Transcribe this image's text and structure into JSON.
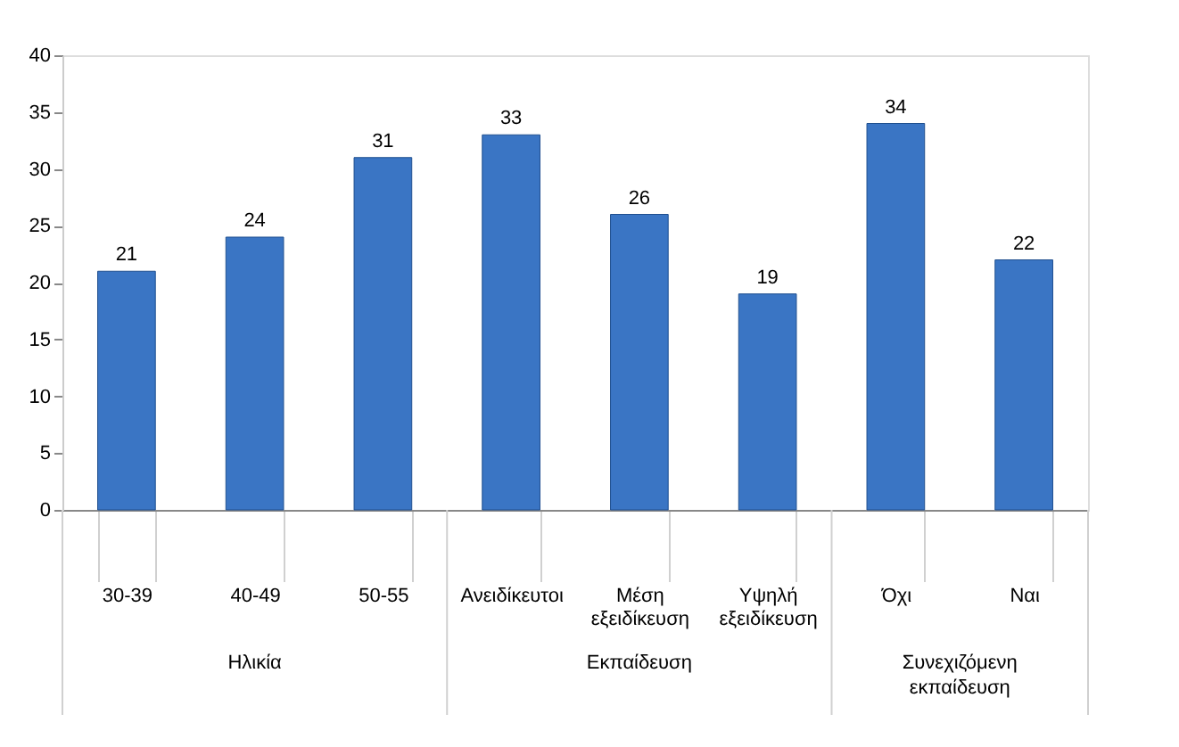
{
  "chart_data": {
    "type": "bar",
    "categories": [
      "30-39",
      "40-49",
      "50-55",
      "Ανειδίκευτοι",
      "Μέση εξειδίκευση",
      "Υψηλή εξειδίκευση",
      "Όχι",
      "Ναι"
    ],
    "values": [
      21,
      24,
      31,
      33,
      26,
      19,
      34,
      22
    ],
    "color": "#3a75c4",
    "ylim": [
      0,
      40
    ],
    "yticks": [
      0,
      5,
      10,
      15,
      20,
      25,
      30,
      35,
      40
    ],
    "grid": false,
    "data_labels": true,
    "annotations": [
      "Ηλικία",
      "Εκπαίδευση",
      "Συνεχιζόμενη εκπαίδευση"
    ]
  }
}
